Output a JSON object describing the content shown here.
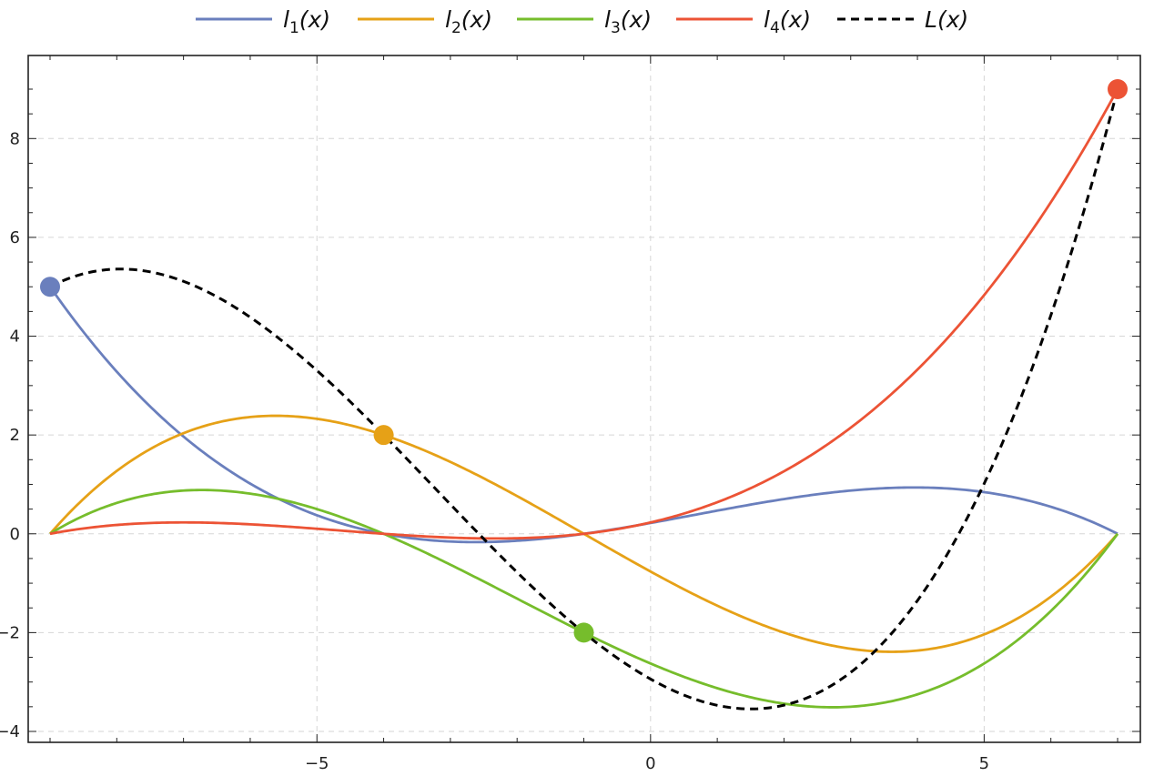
{
  "chart_data": {
    "type": "line",
    "title": "",
    "xlabel": "",
    "ylabel": "",
    "xlim": [
      -9.0,
      7.0
    ],
    "ylim": [
      -4.0,
      9.0
    ],
    "x_ticks": [
      -5,
      0,
      5
    ],
    "x_tick_labels": [
      "−5",
      "0",
      "5"
    ],
    "y_ticks": [
      -4,
      -2,
      0,
      2,
      4,
      6,
      8
    ],
    "y_tick_labels": [
      "−4",
      "−2",
      "0",
      "2",
      "4",
      "6",
      "8"
    ],
    "grid": true,
    "legend_position": "top-center",
    "nodes": [
      {
        "x": -9,
        "y": 5,
        "color": "#6a7fbd"
      },
      {
        "x": -4,
        "y": 2,
        "color": "#e6a117"
      },
      {
        "x": -1,
        "y": -2,
        "color": "#76bd2c"
      },
      {
        "x": 7,
        "y": 9,
        "color": "#ec5335"
      }
    ],
    "series": [
      {
        "key": "l1",
        "name": "l1(x)",
        "label_main": "l",
        "label_sub": "1",
        "label_tail": "(x)",
        "color": "#6a7fbd",
        "dashed": false,
        "node_index": 0
      },
      {
        "key": "l2",
        "name": "l2(x)",
        "label_main": "l",
        "label_sub": "2",
        "label_tail": "(x)",
        "color": "#e6a117",
        "dashed": false,
        "node_index": 1
      },
      {
        "key": "l3",
        "name": "l3(x)",
        "label_main": "l",
        "label_sub": "3",
        "label_tail": "(x)",
        "color": "#76bd2c",
        "dashed": false,
        "node_index": 2
      },
      {
        "key": "l4",
        "name": "l4(x)",
        "label_main": "l",
        "label_sub": "4",
        "label_tail": "(x)",
        "color": "#ec5335",
        "dashed": false,
        "node_index": 3
      },
      {
        "key": "L",
        "name": "L(x)",
        "label_main": "L",
        "label_sub": "",
        "label_tail": "(x)",
        "color": "#000000",
        "dashed": true,
        "node_index": -1
      }
    ]
  }
}
